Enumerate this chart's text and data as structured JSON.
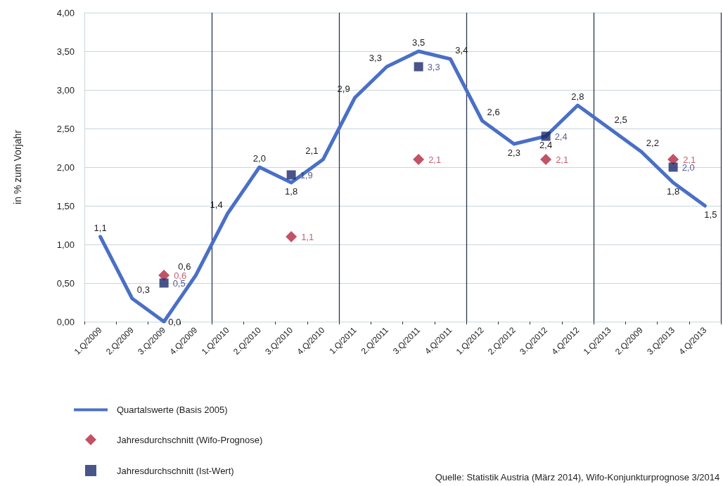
{
  "chart_data": {
    "type": "line",
    "ylabel": "in % zum Vorjahr",
    "categories": [
      "1.Q/2009",
      "2.Q/2009",
      "3.Q/2009",
      "4.Q/2009",
      "1.Q/2010",
      "2.Q/2010",
      "3.Q/2010",
      "4.Q/2010",
      "1.Q/2011",
      "2.Q/2011",
      "3.Q/2011",
      "4.Q/2011",
      "1.Q/2012",
      "2.Q/2012",
      "3.Q/2012",
      "4.Q/2012",
      "1.Q/2013",
      "2.Q/2009",
      "3.Q/2013",
      "4.Q/2013"
    ],
    "series": [
      {
        "name": "Quartalswerte (Basis 2005)",
        "color": "#4a6fc6",
        "marker": "none",
        "line_style": "solid",
        "values": [
          1.1,
          0.3,
          0.0,
          0.6,
          1.4,
          2.0,
          1.8,
          2.1,
          2.9,
          3.3,
          3.5,
          3.4,
          2.6,
          2.3,
          2.4,
          2.8,
          2.5,
          2.2,
          1.8,
          1.5
        ],
        "value_labels": [
          "1,1",
          "0,3",
          "0,0",
          "0,6",
          "1,4",
          "2,0",
          "1,8",
          "2,1",
          "2,9",
          "3,3",
          "3,5",
          "3,4",
          "2,6",
          "2,3",
          "2,4",
          "2,8",
          "2,5",
          "2,2",
          "1,8",
          "1,5"
        ]
      },
      {
        "name": "Jahresdurchschnitt (Wifo-Prognose)",
        "type": "scatter",
        "color": "#b3283f",
        "marker": "diamond",
        "values": [
          null,
          null,
          0.6,
          null,
          null,
          null,
          1.1,
          null,
          null,
          null,
          2.1,
          null,
          null,
          null,
          2.1,
          null,
          null,
          null,
          2.1,
          null
        ],
        "value_labels": [
          null,
          null,
          "0,6",
          null,
          null,
          null,
          "1,1",
          null,
          null,
          null,
          "2,1",
          null,
          null,
          null,
          "2,1",
          null,
          null,
          null,
          "2,1",
          null
        ]
      },
      {
        "name": "Jahresdurchschnitt (Ist-Wert)",
        "type": "scatter",
        "color": "#1b2a6b",
        "marker": "square",
        "values": [
          null,
          null,
          0.5,
          null,
          null,
          null,
          1.9,
          null,
          null,
          null,
          3.3,
          null,
          null,
          null,
          2.4,
          null,
          null,
          null,
          2.0,
          null
        ],
        "value_labels": [
          null,
          null,
          "0,5",
          null,
          null,
          null,
          "1,9",
          null,
          null,
          null,
          "3,3",
          null,
          null,
          null,
          "2,4",
          null,
          null,
          null,
          "2,0",
          null
        ]
      }
    ],
    "ylim": [
      0,
      4
    ],
    "yticks": [
      {
        "value": 0,
        "label": "0,00"
      },
      {
        "value": 0.5,
        "label": "0,50"
      },
      {
        "value": 1,
        "label": "1,00"
      },
      {
        "value": 1.5,
        "label": "1,50"
      },
      {
        "value": 2,
        "label": "2,00"
      },
      {
        "value": 2.5,
        "label": "2,50"
      },
      {
        "value": 3,
        "label": "3,00"
      },
      {
        "value": 3.5,
        "label": "3,50"
      },
      {
        "value": 4,
        "label": "4,00"
      }
    ],
    "grid": true,
    "legend": "bottom left",
    "annotations": [
      "Quelle: Statistik Austria (März 2014), Wifo-Konjunkturprognose 3/2014"
    ]
  }
}
